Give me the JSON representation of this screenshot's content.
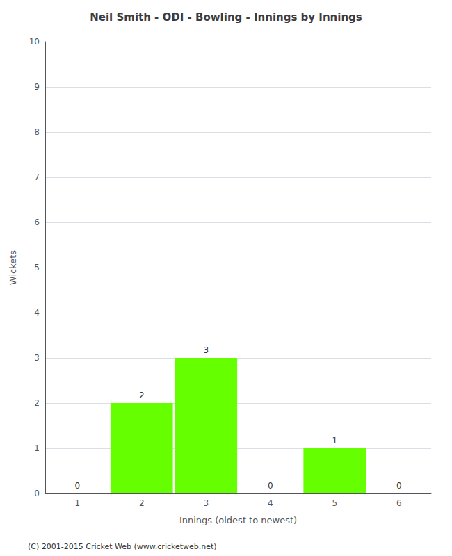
{
  "chart_data": {
    "type": "bar",
    "title": "Neil Smith - ODI - Bowling - Innings by Innings",
    "xlabel": "Innings (oldest to newest)",
    "ylabel": "Wickets",
    "categories": [
      "1",
      "2",
      "3",
      "4",
      "5",
      "6"
    ],
    "values": [
      0,
      2,
      3,
      0,
      1,
      0
    ],
    "color": "#66ff00",
    "ylim": [
      0,
      10
    ],
    "yticks": [
      0,
      1,
      2,
      3,
      4,
      5,
      6,
      7,
      8,
      9,
      10
    ],
    "grid": true,
    "data_labels": true,
    "annotations": [
      "(C) 2001-2015 Cricket Web (www.cricketweb.net)"
    ]
  }
}
